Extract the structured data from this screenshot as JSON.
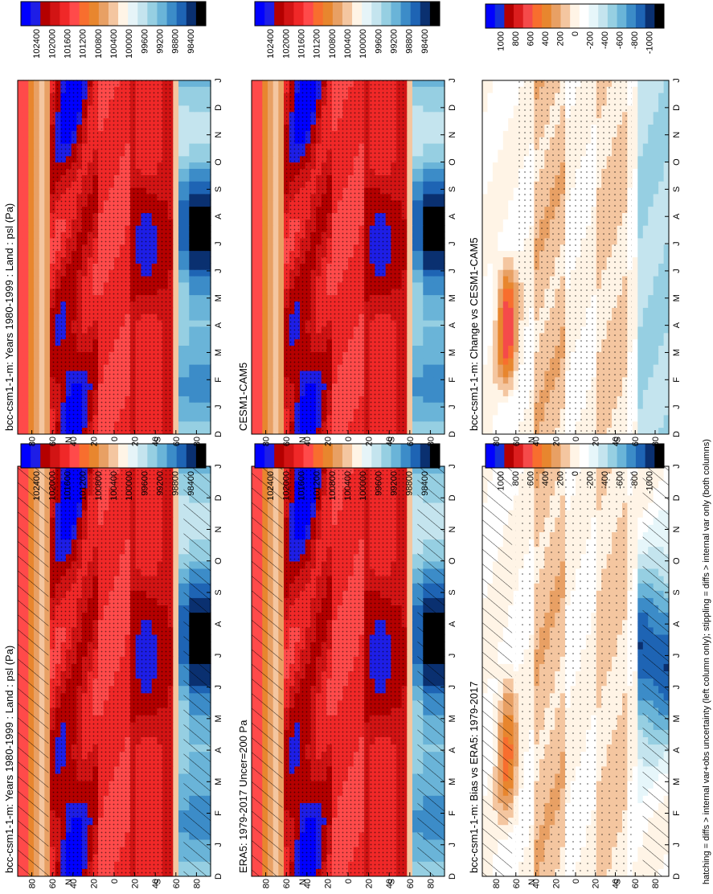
{
  "footer_note": "hatching = diffs > internal var+obs uncertainty (left column only); stippling = diffs > internal var only (both columns)",
  "palettes": {
    "psl": [
      "#0000ff",
      "#1e1ee6",
      "#b40000",
      "#d21414",
      "#f02828",
      "#ff4a4a",
      "#f86e2e",
      "#e8862e",
      "#e8a064",
      "#f4c6a0",
      "#fff4e6",
      "#e6f4f8",
      "#c4e4ee",
      "#96cfe2",
      "#6ab4d8",
      "#3c8cc8",
      "#1e64b4",
      "#0a3070",
      "#000000"
    ],
    "diff": [
      "#0000ff",
      "#1430d8",
      "#b40000",
      "#dc1e1e",
      "#f54a4a",
      "#f86e2e",
      "#e8862e",
      "#e8a064",
      "#f4c6a0",
      "#fff4e6",
      "#ffffff",
      "#e6f6fa",
      "#c4e4ee",
      "#96cfe2",
      "#6ab4d8",
      "#3c8cc8",
      "#1e64b4",
      "#0a3070",
      "#000000"
    ]
  },
  "panels": [
    {
      "name": "panel-model",
      "title": "bcc-csm1-1-m: Years 1980-1999 : Land : psl (Pa)",
      "palette": "psl",
      "field": "clim",
      "hatch": true,
      "stipple": "dense",
      "colorbar": [
        "102400",
        "102000",
        "101600",
        "101200",
        "100800",
        "100400",
        "100000",
        "99600",
        "99200",
        "98800",
        "98400"
      ]
    },
    {
      "name": "panel-era5",
      "title": "ERA5: 1979-2017 Uncer=200 Pa",
      "palette": "psl",
      "field": "clim2",
      "hatch": true,
      "stipple": "dense",
      "colorbar": [
        "102400",
        "102000",
        "101600",
        "101200",
        "100800",
        "100400",
        "100000",
        "99600",
        "99200",
        "98800",
        "98400"
      ]
    },
    {
      "name": "panel-bias",
      "title": "bcc-csm1-1-m: Bias vs ERA5: 1979-2017",
      "palette": "diff",
      "field": "bias",
      "hatch": true,
      "stipple": "sparse",
      "colorbar": [
        "1000",
        "800",
        "600",
        "400",
        "200",
        "0",
        "-200",
        "-400",
        "-600",
        "-800",
        "-1000"
      ]
    },
    {
      "name": "panel-cesm",
      "title": "",
      "palette": "psl",
      "field": "clim3",
      "hatch": false,
      "stipple": "dense",
      "colorbar": [
        "102400",
        "102000",
        "101600",
        "101200",
        "100800",
        "100400",
        "100000",
        "99600",
        "99200",
        "98800",
        "98400"
      ]
    },
    {
      "name": "panel-cesm-label",
      "title": "CESM1-CAM5",
      "palette": "psl",
      "field": "clim3",
      "hatch": false,
      "stipple": "dense",
      "colorbar": [
        "102400",
        "102000",
        "101600",
        "101200",
        "100800",
        "100400",
        "100000",
        "99600",
        "99200",
        "98800",
        "98400"
      ]
    },
    {
      "name": "panel-change",
      "title": "bcc-csm1-1-m: Change vs CESM1-CAM5",
      "palette": "diff",
      "field": "change",
      "hatch": false,
      "stipple": "medium",
      "colorbar": [
        "1000",
        "800",
        "600",
        "400",
        "200",
        "0",
        "-200",
        "-400",
        "-600",
        "-800",
        "-1000"
      ]
    }
  ],
  "chart_data": {
    "type": "heatmap",
    "x_axis": {
      "label": "",
      "ticks": [
        "D",
        "J",
        "F",
        "M",
        "A",
        "M",
        "J",
        "J",
        "A",
        "S",
        "O",
        "N",
        "D",
        "J"
      ]
    },
    "y_axis": {
      "label": "",
      "ticks": [
        "80",
        "60",
        "40",
        "20",
        "0",
        "20",
        "40",
        "60",
        "80"
      ],
      "hemisphere_labels": [
        "N",
        "S"
      ],
      "ylim": [
        -90,
        90
      ]
    },
    "variable": "psl (Pa)",
    "colorbar_levels_psl": [
      102400,
      102000,
      101600,
      101200,
      100800,
      100400,
      100000,
      99600,
      99200,
      98800,
      98400
    ],
    "colorbar_levels_diff": [
      1000,
      800,
      600,
      400,
      200,
      0,
      -200,
      -400,
      -600,
      -800,
      -1000
    ]
  }
}
